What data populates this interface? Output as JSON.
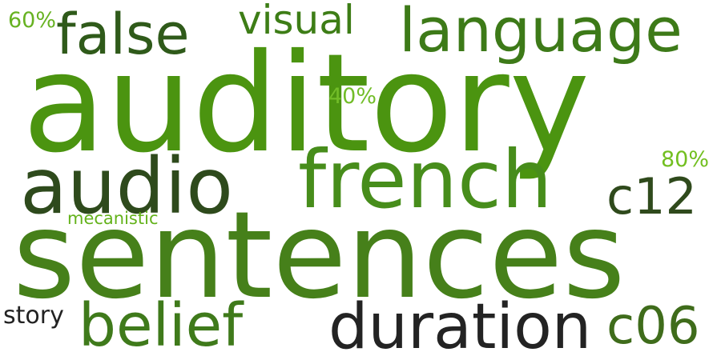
{
  "words": [
    {
      "text": "auditory",
      "color": "#4b9410"
    },
    {
      "text": "sentences",
      "color": "#46801a"
    },
    {
      "text": "french",
      "color": "#478d1b"
    },
    {
      "text": "audio",
      "color": "#2e4a1c"
    },
    {
      "text": "duration",
      "color": "#232323"
    },
    {
      "text": "belief",
      "color": "#3f7a1b"
    },
    {
      "text": "language",
      "color": "#3d7a18"
    },
    {
      "text": "false",
      "color": "#2f5a1a"
    },
    {
      "text": "c06",
      "color": "#3f6c1b"
    },
    {
      "text": "c12",
      "color": "#2f4a1c"
    },
    {
      "text": "visual",
      "color": "#3d7d16"
    },
    {
      "text": "60%",
      "color": "#67b222"
    },
    {
      "text": "40%",
      "color": "#72bd28"
    },
    {
      "text": "80%",
      "color": "#72bf20"
    },
    {
      "text": "story",
      "color": "#222222"
    },
    {
      "text": "mecanistic",
      "color": "#63b21a"
    }
  ]
}
